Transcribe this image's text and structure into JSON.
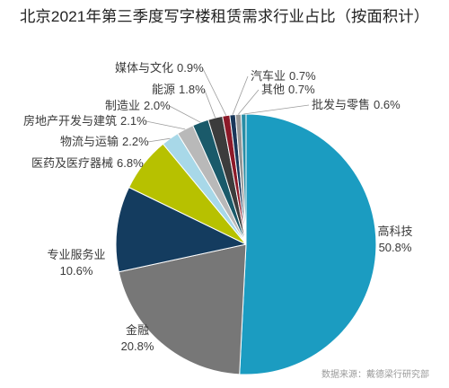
{
  "chart_data": {
    "type": "pie",
    "title": "北京2021年第三季度写字楼租赁需求行业占比（按面积计）",
    "categories": [
      "高科技",
      "金融",
      "专业服务业",
      "医药及医疗器械",
      "物流与运输",
      "房地产开发与建筑",
      "制造业",
      "能源",
      "媒体与文化",
      "汽车业",
      "其他",
      "批发与零售"
    ],
    "values": [
      50.8,
      20.8,
      10.6,
      6.8,
      2.2,
      2.1,
      2.0,
      1.8,
      0.9,
      0.7,
      0.7,
      0.6
    ],
    "value_suffix": "%",
    "colors": [
      "#1b9cc1",
      "#777777",
      "#143c5f",
      "#b7c100",
      "#a8d8e8",
      "#b9b9b9",
      "#1a5a6a",
      "#3c3c3c",
      "#8c1928",
      "#19375a",
      "#969696",
      "#288ca5"
    ],
    "source": "数据来源：戴德梁行研究部"
  }
}
